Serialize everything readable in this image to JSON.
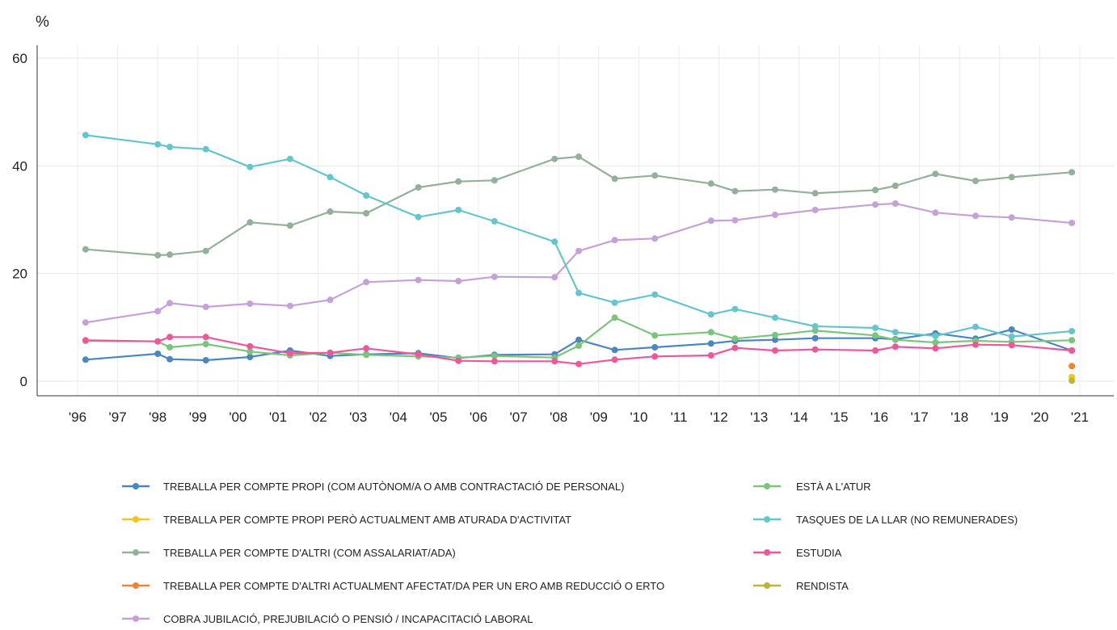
{
  "chart_data": {
    "type": "line",
    "ylabel": "%",
    "ylim": [
      0,
      60
    ],
    "yticks": [
      "0",
      "20",
      "40",
      "60"
    ],
    "xlim": [
      1996,
      2021
    ],
    "xticks": [
      "'96",
      "'97",
      "'98",
      "'99",
      "'00",
      "'01",
      "'02",
      "'03",
      "'04",
      "'05",
      "'06",
      "'07",
      "'08",
      "'09",
      "'10",
      "'11",
      "'12",
      "'13",
      "'14",
      "'15",
      "'16",
      "'17",
      "'18",
      "'19",
      "'20",
      "'21"
    ],
    "grid": true,
    "legend_position": "bottom",
    "series": [
      {
        "name": "TREBALLA PER COMPTE PROPI (COM AUTÒNOM/A O AMB CONTRACTACIÓ DE PERSONAL)",
        "color": "#4a86c0",
        "x": [
          1996.2,
          1998.0,
          1998.3,
          1999.2,
          2000.3,
          2001.3,
          2002.3,
          2003.2,
          2004.5,
          2005.5,
          2006.4,
          2007.9,
          2008.5,
          2009.4,
          2010.4,
          2011.8,
          2012.4,
          2013.4,
          2014.4,
          2015.9,
          2016.4,
          2017.4,
          2018.4,
          2019.3,
          2020.8
        ],
        "y": [
          4.0,
          5.1,
          4.1,
          3.9,
          4.5,
          5.7,
          4.7,
          5.0,
          5.2,
          4.3,
          4.9,
          5.0,
          7.7,
          5.8,
          6.3,
          7.0,
          7.5,
          7.7,
          8.0,
          8.0,
          7.8,
          8.9,
          7.9,
          9.6,
          5.7
        ]
      },
      {
        "name": "TREBALLA PER COMPTE PROPI PERÒ ACTUALMENT AMB ATURADA D'ACTIVITAT",
        "color": "#f5c518",
        "x": [
          2020.8
        ],
        "y": [
          0.8
        ]
      },
      {
        "name": "TREBALLA PER COMPTE D'ALTRI (COM ASSALARIAT/ADA)",
        "color": "#93b09a",
        "x": [
          1996.2,
          1998.0,
          1998.3,
          1999.2,
          2000.3,
          2001.3,
          2002.3,
          2003.2,
          2004.5,
          2005.5,
          2006.4,
          2007.9,
          2008.5,
          2009.4,
          2010.4,
          2011.8,
          2012.4,
          2013.4,
          2014.4,
          2015.9,
          2016.4,
          2017.4,
          2018.4,
          2019.3,
          2020.8
        ],
        "y": [
          24.5,
          23.4,
          23.5,
          24.2,
          29.5,
          28.9,
          31.5,
          31.2,
          36.0,
          37.1,
          37.3,
          41.3,
          41.7,
          37.6,
          38.2,
          36.7,
          35.3,
          35.6,
          34.9,
          35.5,
          36.3,
          38.5,
          37.2,
          37.9,
          38.8
        ]
      },
      {
        "name": "TREBALLA PER COMPTE D'ALTRI ACTUALMENT AFECTAT/DA PER UN ERO AMB REDUCCIÓ O ERTO",
        "color": "#f08232",
        "x": [
          2020.8
        ],
        "y": [
          2.8
        ]
      },
      {
        "name": "COBRA JUBILACIÓ, PREJUBILACIÓ O PENSIÓ / INCAPACITACIÓ LABORAL",
        "color": "#c4a2d8",
        "x": [
          1996.2,
          1998.0,
          1998.3,
          1999.2,
          2000.3,
          2001.3,
          2002.3,
          2003.2,
          2004.5,
          2005.5,
          2006.4,
          2007.9,
          2008.5,
          2009.4,
          2010.4,
          2011.8,
          2012.4,
          2013.4,
          2014.4,
          2015.9,
          2016.4,
          2017.4,
          2018.4,
          2019.3,
          2020.8
        ],
        "y": [
          10.9,
          13.0,
          14.5,
          13.8,
          14.4,
          14.0,
          15.1,
          18.4,
          18.8,
          18.6,
          19.4,
          19.3,
          24.2,
          26.2,
          26.5,
          29.8,
          29.9,
          30.9,
          31.8,
          32.8,
          33.0,
          31.3,
          30.7,
          30.4,
          29.4
        ]
      },
      {
        "name": "ESTÀ A L'ATUR",
        "color": "#7cc47a",
        "x": [
          1996.2,
          1998.0,
          1998.3,
          1999.2,
          2000.3,
          2001.3,
          2002.3,
          2003.2,
          2004.5,
          2005.5,
          2006.4,
          2007.9,
          2008.5,
          2009.4,
          2010.4,
          2011.8,
          2012.4,
          2013.4,
          2014.4,
          2015.9,
          2016.4,
          2017.4,
          2018.4,
          2019.3,
          2020.8
        ],
        "y": [
          7.5,
          7.4,
          6.3,
          6.9,
          5.5,
          4.8,
          5.3,
          4.9,
          4.6,
          4.4,
          4.7,
          4.4,
          6.6,
          11.8,
          8.5,
          9.1,
          7.9,
          8.6,
          9.4,
          8.5,
          7.7,
          7.2,
          7.5,
          7.3,
          7.6
        ]
      },
      {
        "name": "TASQUES DE LA LLAR (NO REMUNERADES)",
        "color": "#66c5cc",
        "x": [
          1996.2,
          1998.0,
          1998.3,
          1999.2,
          2000.3,
          2001.3,
          2002.3,
          2003.2,
          2004.5,
          2005.5,
          2006.4,
          2007.9,
          2008.5,
          2009.4,
          2010.4,
          2011.8,
          2012.4,
          2013.4,
          2014.4,
          2015.9,
          2016.4,
          2017.4,
          2018.4,
          2019.3,
          2020.8
        ],
        "y": [
          45.7,
          44.0,
          43.5,
          43.1,
          39.8,
          41.3,
          37.9,
          34.5,
          30.5,
          31.8,
          29.7,
          25.9,
          16.4,
          14.6,
          16.1,
          12.4,
          13.4,
          11.8,
          10.2,
          9.9,
          9.1,
          8.4,
          10.1,
          8.3,
          9.3
        ]
      },
      {
        "name": "ESTUDIA",
        "color": "#f0569a",
        "x": [
          1996.2,
          1998.0,
          1998.3,
          1999.2,
          2000.3,
          2001.3,
          2002.3,
          2003.2,
          2004.5,
          2005.5,
          2006.4,
          2007.9,
          2008.5,
          2009.4,
          2010.4,
          2011.8,
          2012.4,
          2013.4,
          2014.4,
          2015.9,
          2016.4,
          2017.4,
          2018.4,
          2019.3,
          2020.8
        ],
        "y": [
          7.6,
          7.4,
          8.2,
          8.2,
          6.5,
          5.2,
          5.3,
          6.1,
          5.0,
          3.8,
          3.7,
          3.7,
          3.2,
          4.0,
          4.6,
          4.8,
          6.2,
          5.7,
          5.9,
          5.7,
          6.4,
          6.1,
          6.8,
          6.7,
          5.7
        ]
      },
      {
        "name": "RENDISTA",
        "color": "#b9b835",
        "x": [
          2020.8
        ],
        "y": [
          0.1
        ]
      }
    ]
  }
}
